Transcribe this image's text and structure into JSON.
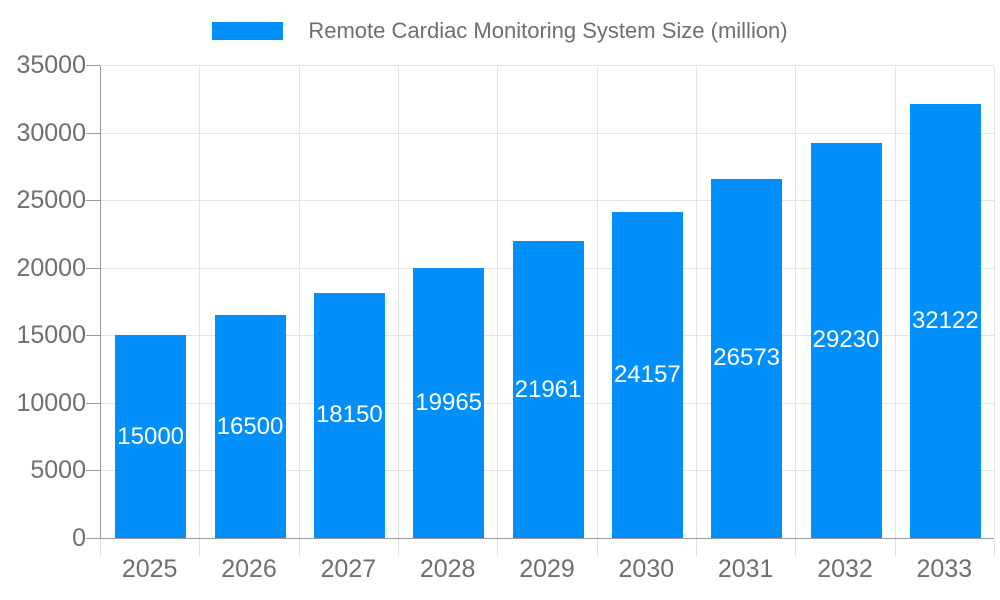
{
  "legend": {
    "series_label": "Remote Cardiac Monitoring System Size (million)"
  },
  "chart_data": {
    "type": "bar",
    "title": "",
    "series_name": "Remote Cardiac Monitoring System Size (million)",
    "categories": [
      "2025",
      "2026",
      "2027",
      "2028",
      "2029",
      "2030",
      "2031",
      "2032",
      "2033"
    ],
    "values": [
      15000,
      16500,
      18150,
      19965,
      21961,
      24157,
      26573,
      29230,
      32122
    ],
    "value_labels": [
      "15000",
      "16500",
      "18150",
      "19965",
      "21961",
      "24157",
      "26573",
      "29230",
      "32122"
    ],
    "xlabel": "",
    "ylabel": "",
    "ylim": [
      0,
      35000
    ],
    "ytick_interval": 5000,
    "ytick_labels": [
      "0",
      "5000",
      "10000",
      "15000",
      "20000",
      "25000",
      "30000",
      "35000"
    ],
    "grid": true,
    "vertical_grid": true,
    "legend_position": "top",
    "bar_label_position": "center"
  },
  "colors": {
    "bar": "#008FFB",
    "bar_value_text": "#FFFFFF",
    "grid_line": "#E4E4E4",
    "axis_line": "#98989D",
    "xtick_mark": "#E0E0E0",
    "axis_label_text": "#6E6E73",
    "legend_text": "#6E6E73",
    "background": "#FFFFFF"
  }
}
